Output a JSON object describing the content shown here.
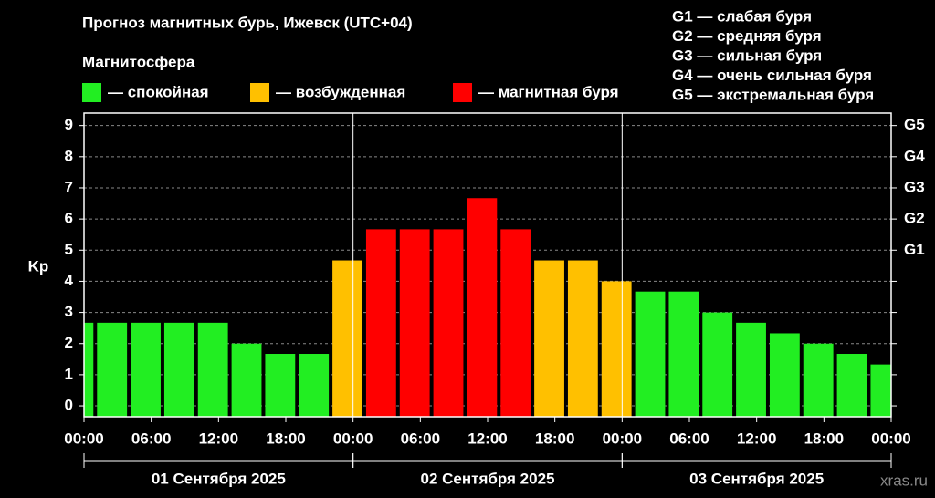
{
  "chart_data": {
    "type": "bar",
    "title": "Прогноз магнитных бурь, Ижевск (UTC+04)",
    "legend_title": "Магнитосфера",
    "legend": [
      {
        "label": "— спокойная",
        "color": "#22ee22"
      },
      {
        "label": "— возбужденная",
        "color": "#ffc000"
      },
      {
        "label": "— магнитная буря",
        "color": "#ff0000"
      }
    ],
    "storm_scale": [
      "G1 — слабая буря",
      "G2 — средняя буря",
      "G3 — сильная буря",
      "G4 — очень сильная буря",
      "G5 — экстремальная буря"
    ],
    "ylabel": "Kp",
    "x": [
      -0.5,
      2.5,
      5.5,
      8.5,
      11.5,
      14.5,
      17.5,
      20.5,
      23.5,
      26.5,
      29.5,
      32.5,
      35.5,
      38.5,
      41.5,
      44.5,
      47.5,
      50.5,
      53.5,
      56.5,
      59.5,
      62.5,
      65.5,
      68.5,
      71.5
    ],
    "values": [
      2.67,
      2.67,
      2.67,
      2.67,
      2.67,
      2.0,
      1.67,
      1.67,
      4.67,
      5.67,
      5.67,
      5.67,
      6.67,
      5.67,
      4.67,
      4.67,
      4.0,
      3.67,
      3.67,
      3.0,
      2.67,
      2.33,
      2.0,
      1.67,
      1.33
    ],
    "bar_colors": [
      "#22ee22",
      "#22ee22",
      "#22ee22",
      "#22ee22",
      "#22ee22",
      "#22ee22",
      "#22ee22",
      "#22ee22",
      "#ffc000",
      "#ff0000",
      "#ff0000",
      "#ff0000",
      "#ff0000",
      "#ff0000",
      "#ffc000",
      "#ffc000",
      "#ffc000",
      "#22ee22",
      "#22ee22",
      "#22ee22",
      "#22ee22",
      "#22ee22",
      "#22ee22",
      "#22ee22",
      "#22ee22"
    ],
    "xlim": [
      0,
      72
    ],
    "xticks": [
      {
        "value": 0,
        "label": "00:00"
      },
      {
        "value": 6,
        "label": "06:00"
      },
      {
        "value": 12,
        "label": "12:00"
      },
      {
        "value": 18,
        "label": "18:00"
      },
      {
        "value": 24,
        "label": "00:00"
      },
      {
        "value": 30,
        "label": "06:00"
      },
      {
        "value": 36,
        "label": "12:00"
      },
      {
        "value": 42,
        "label": "18:00"
      },
      {
        "value": 48,
        "label": "00:00"
      },
      {
        "value": 54,
        "label": "06:00"
      },
      {
        "value": 60,
        "label": "12:00"
      },
      {
        "value": 66,
        "label": "18:00"
      },
      {
        "value": 72,
        "label": "00:00"
      }
    ],
    "ylim": [
      -0.35,
      9.4
    ],
    "yticks": [
      0,
      1,
      2,
      3,
      4,
      5,
      6,
      7,
      8,
      9
    ],
    "y2ticks": [
      {
        "value": 5,
        "label": "G1"
      },
      {
        "value": 6,
        "label": "G2"
      },
      {
        "value": 7,
        "label": "G3"
      },
      {
        "value": 8,
        "label": "G4"
      },
      {
        "value": 9,
        "label": "G5"
      }
    ],
    "days": [
      {
        "label": "01 Сентября 2025",
        "start": 0,
        "end": 24
      },
      {
        "label": "02 Сентября 2025",
        "start": 24,
        "end": 48
      },
      {
        "label": "03 Сентября 2025",
        "start": 48,
        "end": 72
      }
    ],
    "grid": true,
    "watermark": "xras.ru"
  }
}
